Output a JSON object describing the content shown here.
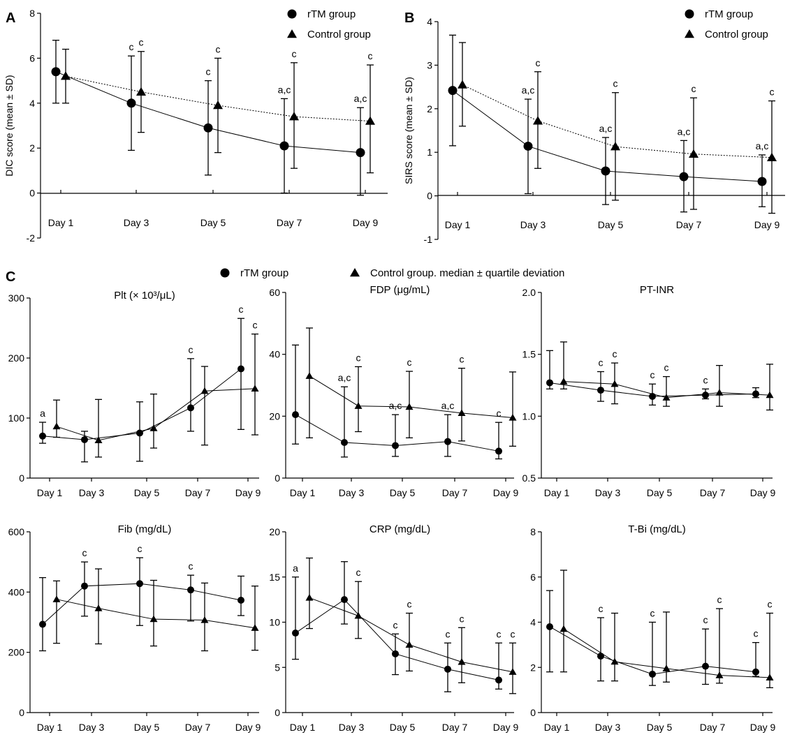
{
  "chart_data": [
    {
      "id": "A",
      "type": "line",
      "panel_label": "A",
      "title": "",
      "ylabel": "DIC score (mean ± SD)",
      "xlabel": "",
      "ylim": [
        -2,
        8
      ],
      "yticks": [
        -2,
        0,
        2,
        4,
        6,
        8
      ],
      "xtick_position": "inside",
      "categories": [
        "Day 1",
        "Day 3",
        "Day 5",
        "Day 7",
        "Day 9"
      ],
      "legend": [
        {
          "label": "rTM group",
          "marker": "circle"
        },
        {
          "label": "Control group",
          "marker": "triangle"
        }
      ],
      "series": [
        {
          "name": "rTM group",
          "marker": "circle",
          "linestyle": "solid",
          "values": [
            5.4,
            4.0,
            2.9,
            2.1,
            1.8
          ],
          "low": [
            4.0,
            1.9,
            0.8,
            0.0,
            -0.1
          ],
          "high": [
            6.8,
            6.1,
            5.0,
            4.2,
            3.8
          ],
          "annotations": [
            "",
            "c",
            "c",
            "a,c",
            "a,c"
          ]
        },
        {
          "name": "Control group",
          "marker": "triangle",
          "linestyle": "dotted",
          "values": [
            5.2,
            4.5,
            3.9,
            3.4,
            3.2
          ],
          "low": [
            4.0,
            2.7,
            1.8,
            1.1,
            0.9
          ],
          "high": [
            6.4,
            6.3,
            6.0,
            5.8,
            5.7
          ],
          "annotations": [
            "",
            "c",
            "c",
            "c",
            "c"
          ]
        }
      ]
    },
    {
      "id": "B",
      "type": "line",
      "panel_label": "B",
      "title": "",
      "ylabel": "SIRS score (mean ± SD)",
      "xlabel": "",
      "ylim": [
        -1,
        4
      ],
      "yticks": [
        -1,
        0,
        1,
        2,
        3,
        4
      ],
      "xtick_position": "inside",
      "categories": [
        "Day 1",
        "Day 3",
        "Day 5",
        "Day 7",
        "Day 9"
      ],
      "legend": [
        {
          "label": "rTM group",
          "marker": "circle"
        },
        {
          "label": "Control group",
          "marker": "triangle"
        }
      ],
      "series": [
        {
          "name": "rTM group",
          "marker": "circle",
          "linestyle": "solid",
          "values": [
            2.42,
            1.14,
            0.57,
            0.44,
            0.33
          ],
          "low": [
            1.15,
            0.05,
            -0.2,
            -0.37,
            -0.25
          ],
          "high": [
            3.69,
            2.22,
            1.34,
            1.27,
            0.94
          ],
          "annotations": [
            "",
            "a,c",
            "a,c",
            "a,c",
            "a,c"
          ]
        },
        {
          "name": "Control group",
          "marker": "triangle",
          "linestyle": "dotted",
          "values": [
            2.55,
            1.72,
            1.13,
            0.96,
            0.88
          ],
          "low": [
            1.6,
            0.63,
            -0.1,
            -0.31,
            -0.4
          ],
          "high": [
            3.52,
            2.85,
            2.37,
            2.25,
            2.18
          ],
          "annotations": [
            "",
            "c",
            "c",
            "c",
            "c"
          ]
        }
      ]
    },
    {
      "id": "Plt",
      "type": "line",
      "title": "Plt (× 10³/μL)",
      "ylim": [
        0,
        300
      ],
      "yticks": [
        0,
        100,
        200,
        300
      ],
      "categories": [
        "Day 1",
        "Day 3",
        "Day 5",
        "Day 7",
        "Day 9"
      ],
      "series": [
        {
          "name": "rTM group",
          "marker": "circle",
          "values": [
            70,
            64,
            75,
            117,
            182
          ],
          "low": [
            58,
            27,
            28,
            78,
            81
          ],
          "high": [
            93,
            78,
            127,
            199,
            266
          ],
          "annotations": [
            "a",
            "",
            "",
            "c",
            "c"
          ]
        },
        {
          "name": "Control group",
          "marker": "triangle",
          "values": [
            86,
            63,
            83,
            145,
            149
          ],
          "low": [
            68,
            35,
            50,
            55,
            72
          ],
          "high": [
            130,
            131,
            140,
            186,
            240
          ],
          "annotations": [
            "",
            "",
            "",
            "",
            "c"
          ]
        }
      ]
    },
    {
      "id": "FDP",
      "type": "line",
      "title": "FDP (μg/mL)",
      "ylim": [
        0,
        60
      ],
      "yticks": [
        0,
        20,
        40,
        60
      ],
      "categories": [
        "Day 1",
        "Day 3",
        "Day 5",
        "Day 7",
        "Day 9"
      ],
      "series": [
        {
          "name": "rTM group",
          "marker": "circle",
          "values": [
            20.5,
            11.5,
            10.5,
            11.8,
            8.7
          ],
          "low": [
            11,
            6.8,
            7,
            7,
            6.2
          ],
          "high": [
            43,
            29.5,
            20.5,
            20.5,
            18
          ],
          "annotations": [
            "",
            "a,c",
            "a,c",
            "a,c",
            "c"
          ]
        },
        {
          "name": "Control group",
          "marker": "triangle",
          "values": [
            33,
            23.3,
            23,
            21,
            19.5
          ],
          "low": [
            13,
            15,
            13,
            12,
            10.3
          ],
          "high": [
            48.5,
            36,
            34.5,
            35.5,
            34.3
          ],
          "annotations": [
            "",
            "c",
            "c",
            "c",
            ""
          ]
        }
      ]
    },
    {
      "id": "PTINR",
      "type": "line",
      "title": "PT-INR",
      "ylim": [
        0.5,
        2.0
      ],
      "yticks": [
        0.5,
        1.0,
        1.5,
        2.0
      ],
      "ytick_format": 1,
      "categories": [
        "Day 1",
        "Day 3",
        "Day 5",
        "Day 7",
        "Day 9"
      ],
      "series": [
        {
          "name": "rTM group",
          "marker": "circle",
          "values": [
            1.27,
            1.21,
            1.16,
            1.17,
            1.18
          ],
          "low": [
            1.22,
            1.12,
            1.09,
            1.14,
            1.15
          ],
          "high": [
            1.53,
            1.36,
            1.26,
            1.22,
            1.23
          ],
          "annotations": [
            "",
            "c",
            "c",
            "c",
            ""
          ]
        },
        {
          "name": "Control group",
          "marker": "triangle",
          "values": [
            1.28,
            1.26,
            1.15,
            1.19,
            1.17
          ],
          "low": [
            1.22,
            1.1,
            1.08,
            1.08,
            1.05
          ],
          "high": [
            1.6,
            1.43,
            1.32,
            1.41,
            1.42
          ],
          "annotations": [
            "",
            "c",
            "c",
            "",
            ""
          ]
        }
      ]
    },
    {
      "id": "Fib",
      "type": "line",
      "title": "Fib (mg/dL)",
      "ylim": [
        0,
        600
      ],
      "yticks": [
        0,
        200,
        400,
        600
      ],
      "categories": [
        "Day 1",
        "Day 3",
        "Day 5",
        "Day 7",
        "Day 9"
      ],
      "series": [
        {
          "name": "rTM group",
          "marker": "circle",
          "values": [
            293,
            420,
            428,
            407,
            373
          ],
          "low": [
            205,
            320,
            289,
            304,
            322
          ],
          "high": [
            448,
            500,
            514,
            456,
            453
          ],
          "annotations": [
            "",
            "c",
            "c",
            "c",
            ""
          ]
        },
        {
          "name": "Control group",
          "marker": "triangle",
          "values": [
            376,
            346,
            310,
            307,
            281
          ],
          "low": [
            230,
            228,
            221,
            205,
            207
          ],
          "high": [
            437,
            477,
            439,
            430,
            420
          ],
          "annotations": [
            "",
            "",
            "",
            "",
            ""
          ]
        }
      ]
    },
    {
      "id": "CRP",
      "type": "line",
      "title": "CRP (mg/dL)",
      "ylim": [
        0,
        20
      ],
      "yticks": [
        0,
        5,
        10,
        15,
        20
      ],
      "categories": [
        "Day 1",
        "Day 3",
        "Day 5",
        "Day 7",
        "Day 9"
      ],
      "series": [
        {
          "name": "rTM group",
          "marker": "circle",
          "values": [
            8.8,
            12.5,
            6.5,
            4.8,
            3.6
          ],
          "low": [
            5.9,
            9.8,
            4.2,
            2.3,
            2.6
          ],
          "high": [
            15.0,
            16.7,
            8.7,
            7.7,
            7.7
          ],
          "annotations": [
            "a",
            "",
            "c",
            "c",
            "c"
          ]
        },
        {
          "name": "Control group",
          "marker": "triangle",
          "values": [
            12.7,
            10.7,
            7.5,
            5.6,
            4.5
          ],
          "low": [
            9.3,
            8.2,
            4.6,
            3.3,
            2.1
          ],
          "high": [
            17.1,
            14.5,
            11.0,
            9.4,
            7.7
          ],
          "annotations": [
            "",
            "c",
            "c",
            "c",
            "c"
          ]
        }
      ]
    },
    {
      "id": "TBi",
      "type": "line",
      "title": "T-Bi (mg/dL)",
      "ylim": [
        0,
        8
      ],
      "yticks": [
        0,
        2,
        4,
        6,
        8
      ],
      "categories": [
        "Day 1",
        "Day 3",
        "Day 5",
        "Day 7",
        "Day 9"
      ],
      "series": [
        {
          "name": "rTM group",
          "marker": "circle",
          "values": [
            3.8,
            2.5,
            1.7,
            2.05,
            1.8
          ],
          "low": [
            1.8,
            1.4,
            1.2,
            1.25,
            1.6
          ],
          "high": [
            5.4,
            4.2,
            4.0,
            3.7,
            3.1
          ],
          "annotations": [
            "",
            "c",
            "c",
            "c",
            "c"
          ]
        },
        {
          "name": "Control group",
          "marker": "triangle",
          "values": [
            3.7,
            2.25,
            1.95,
            1.65,
            1.55
          ],
          "low": [
            1.8,
            1.4,
            1.35,
            1.3,
            1.1
          ],
          "high": [
            6.3,
            4.4,
            4.45,
            4.6,
            4.4
          ],
          "annotations": [
            "",
            "",
            "",
            "c",
            "c"
          ]
        }
      ]
    }
  ],
  "panel_c": {
    "label": "C",
    "legend": [
      {
        "label": "rTM group",
        "marker": "circle"
      },
      {
        "label": "Control group. median ± quartile deviation",
        "marker": "triangle"
      }
    ]
  }
}
